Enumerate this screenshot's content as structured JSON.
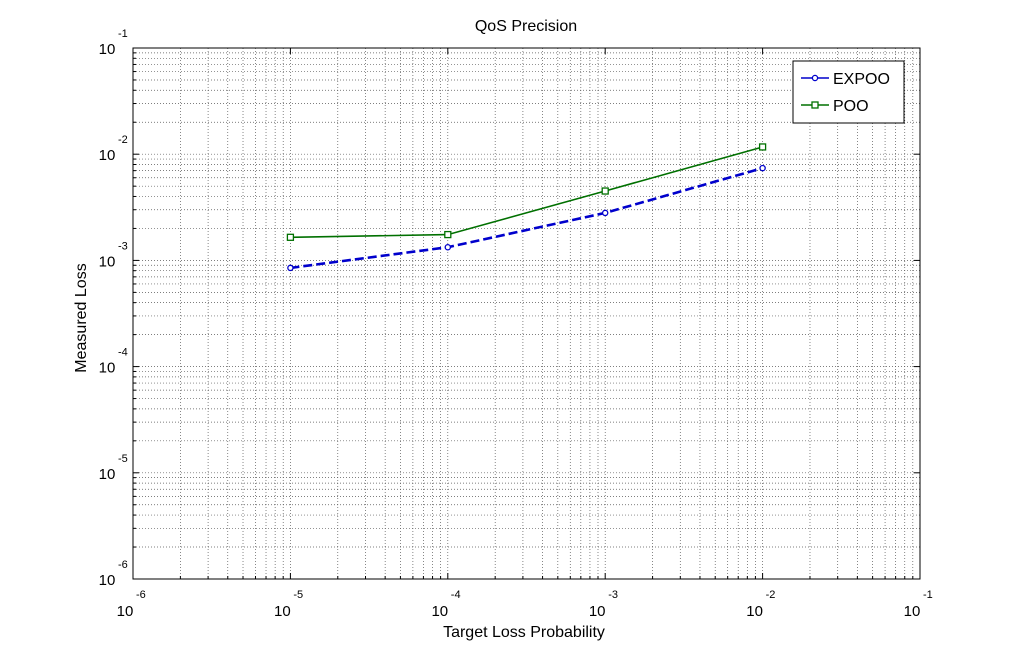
{
  "chart_data": {
    "type": "line",
    "title": "QoS Precision",
    "xlabel": "Target Loss Probability",
    "ylabel": "Measured Loss",
    "xscale": "log",
    "yscale": "log",
    "xlim": [
      1e-06,
      0.1
    ],
    "ylim": [
      1e-06,
      0.1
    ],
    "grid": true,
    "legend_position": "top-right",
    "x_ticks": [
      {
        "base": "10",
        "exp": "-6"
      },
      {
        "base": "10",
        "exp": "-5"
      },
      {
        "base": "10",
        "exp": "-4"
      },
      {
        "base": "10",
        "exp": "-3"
      },
      {
        "base": "10",
        "exp": "-2"
      },
      {
        "base": "10",
        "exp": "-1"
      }
    ],
    "y_ticks": [
      {
        "base": "10",
        "exp": "-6"
      },
      {
        "base": "10",
        "exp": "-5"
      },
      {
        "base": "10",
        "exp": "-4"
      },
      {
        "base": "10",
        "exp": "-3"
      },
      {
        "base": "10",
        "exp": "-2"
      },
      {
        "base": "10",
        "exp": "-1"
      }
    ],
    "series": [
      {
        "name": "EXPOO",
        "color": "#0000cc",
        "line_style": "dashed",
        "marker": "circle",
        "x": [
          1e-05,
          0.0001,
          0.001,
          0.01
        ],
        "y": [
          0.00085,
          0.00133,
          0.0028,
          0.0074
        ]
      },
      {
        "name": "POO",
        "color": "#007000",
        "line_style": "solid",
        "marker": "square",
        "x": [
          1e-05,
          0.0001,
          0.001,
          0.01
        ],
        "y": [
          0.00165,
          0.00175,
          0.0045,
          0.0117
        ]
      }
    ]
  }
}
